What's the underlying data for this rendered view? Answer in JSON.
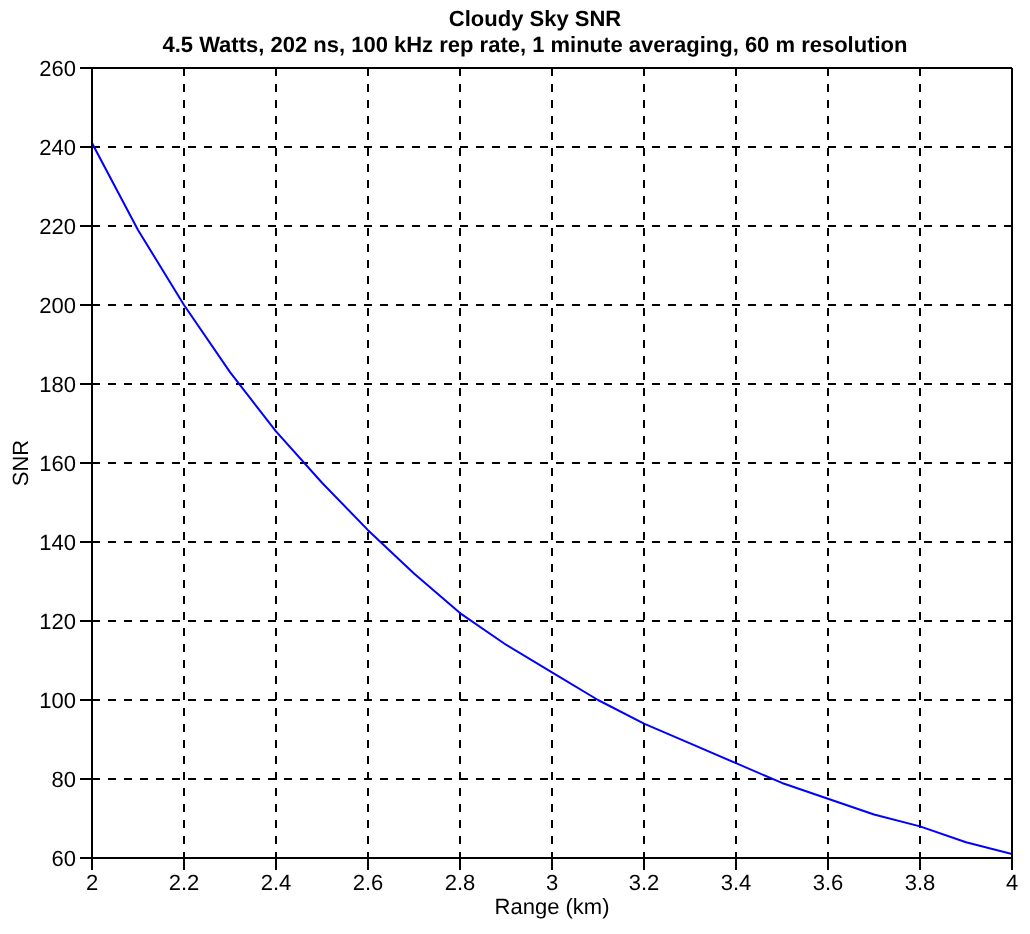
{
  "chart_data": {
    "type": "line",
    "title": "Cloudy Sky SNR",
    "subtitle": "4.5 Watts, 202 ns, 100 kHz rep rate, 1 minute averaging, 60 m resolution",
    "xlabel": "Range (km)",
    "ylabel": "SNR",
    "x": [
      2,
      2.1,
      2.2,
      2.3,
      2.4,
      2.5,
      2.6,
      2.7,
      2.8,
      2.9,
      3,
      3.1,
      3.2,
      3.3,
      3.4,
      3.5,
      3.6,
      3.7,
      3.8,
      3.9,
      4
    ],
    "series": [
      {
        "color": "#0000ff",
        "values": [
          241,
          219,
          200,
          183,
          168,
          155,
          143,
          132,
          122,
          114,
          107,
          100,
          94,
          89,
          84,
          79,
          75,
          71,
          68,
          64,
          61
        ]
      }
    ],
    "xlim": [
      2,
      4
    ],
    "xticks": [
      2,
      2.2,
      2.4,
      2.6,
      2.8,
      3,
      3.2,
      3.4,
      3.6,
      3.8,
      4
    ],
    "ylim": [
      60,
      260
    ],
    "yticks": [
      60,
      80,
      100,
      120,
      140,
      160,
      180,
      200,
      220,
      240,
      260
    ],
    "grid": true,
    "legend": false,
    "marker": "none",
    "line_style": "solid"
  }
}
